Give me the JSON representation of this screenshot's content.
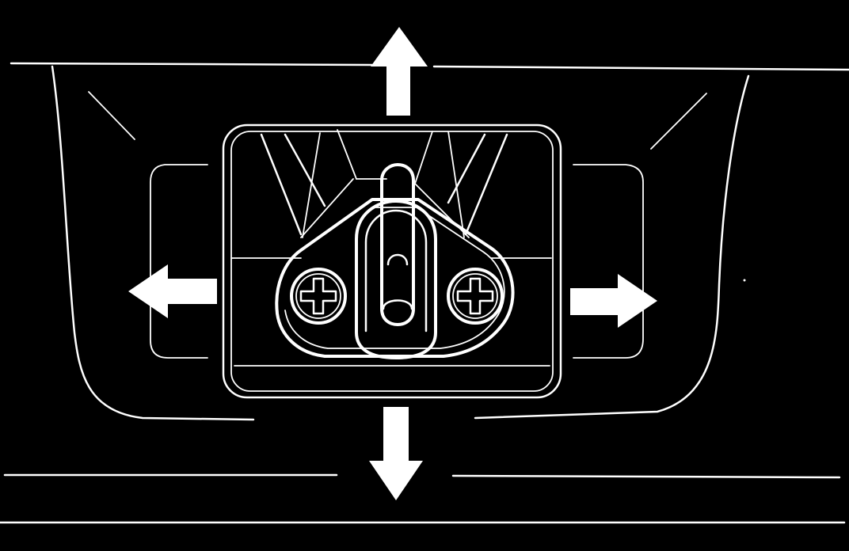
{
  "figure": {
    "subject": "striker-plate",
    "adjustment_directions": [
      "up",
      "down",
      "left",
      "right"
    ],
    "screws": [
      "phillips-screw-left",
      "phillips-screw-right"
    ]
  },
  "colors": {
    "background": "#000000",
    "line": "#ffffff"
  }
}
